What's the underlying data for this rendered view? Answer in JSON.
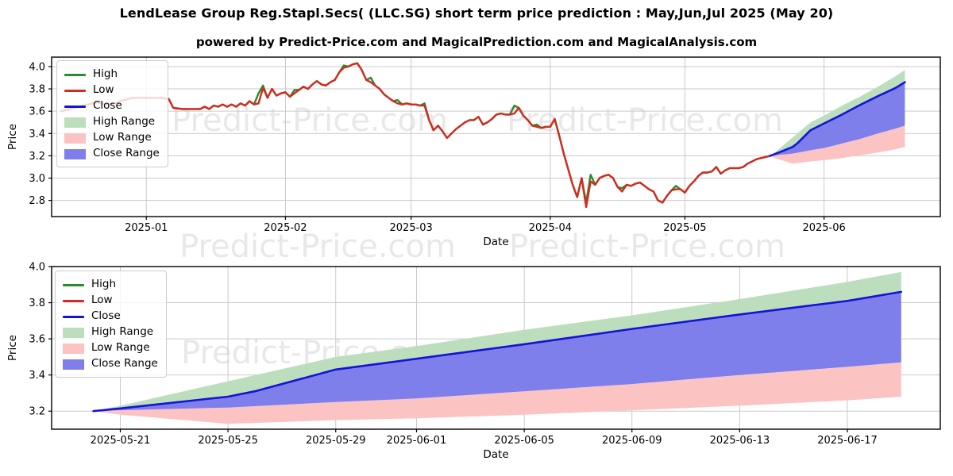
{
  "page": {
    "title": "LendLease Group Reg.Stapl.Secs( (LLC.SG) short term price prediction : May,Jun,Jul 2025 (May 20)",
    "subtitle": "powered by Predict-Price.com and MagicalPrediction.com and MagicalAnalysis.com",
    "watermark_text": "Predict-Price.com",
    "background": "#ffffff"
  },
  "colors": {
    "high_line": "#2a8c2a",
    "low_line": "#d22b22",
    "close_line": "#1414d6",
    "high_range": "#bcdebc",
    "low_range": "#fcc3c3",
    "close_range": "#7f7fec",
    "grid": "#c9c9c9",
    "axis": "#000000",
    "text": "#000000",
    "watermark": "rgba(0,0,0,0.09)"
  },
  "legend": {
    "items": [
      {
        "label": "High",
        "kind": "line",
        "color": "high_line"
      },
      {
        "label": "Low",
        "kind": "line",
        "color": "low_line"
      },
      {
        "label": "Close",
        "kind": "line",
        "color": "close_line"
      },
      {
        "label": "High Range",
        "kind": "patch",
        "color": "high_range"
      },
      {
        "label": "Low Range",
        "kind": "patch",
        "color": "low_range"
      },
      {
        "label": "Close Range",
        "kind": "patch",
        "color": "close_range"
      }
    ]
  },
  "chart_data": [
    {
      "type": "line",
      "role": "history_with_forecast",
      "xlabel": "Date",
      "ylabel": "Price",
      "grid": true,
      "legend_position": "upper left",
      "yticks": [
        2.8,
        3.0,
        3.2,
        3.4,
        3.6,
        3.8,
        4.0
      ],
      "ylim": [
        2.655,
        4.085
      ],
      "xlim_days": [
        -21.1,
        176.9
      ],
      "xticks": [
        {
          "label": "2025-01",
          "day": 0
        },
        {
          "label": "2025-02",
          "day": 31
        },
        {
          "label": "2025-03",
          "day": 59
        },
        {
          "label": "2025-04",
          "day": 90
        },
        {
          "label": "2025-05",
          "day": 120
        },
        {
          "label": "2025-06",
          "day": 151
        }
      ],
      "history_points_day_low_high": [
        [
          -19,
          3.6
        ],
        [
          -17,
          3.62
        ],
        [
          -15,
          3.64
        ],
        [
          -13,
          3.66
        ],
        [
          -11,
          3.68
        ],
        [
          -9,
          3.66
        ],
        [
          -7,
          3.67
        ],
        [
          -5,
          3.7
        ],
        [
          -3,
          3.72
        ],
        [
          -1,
          3.72
        ],
        [
          1,
          3.72
        ],
        [
          3,
          3.72
        ],
        [
          5,
          3.71
        ],
        [
          6,
          3.63
        ],
        [
          8,
          3.62
        ],
        [
          10,
          3.62
        ],
        [
          12,
          3.62
        ],
        [
          13,
          3.64
        ],
        [
          14,
          3.62
        ],
        [
          15,
          3.65
        ],
        [
          16,
          3.64
        ],
        [
          17,
          3.66
        ],
        [
          18,
          3.64
        ],
        [
          19,
          3.66
        ],
        [
          20,
          3.64
        ],
        [
          21,
          3.67
        ],
        [
          22,
          3.65
        ],
        [
          23,
          3.69
        ],
        [
          24,
          3.66
        ],
        [
          25,
          3.67,
          3.76
        ],
        [
          26,
          3.81,
          3.83
        ],
        [
          27,
          3.72
        ],
        [
          28,
          3.8
        ],
        [
          29,
          3.74
        ],
        [
          30,
          3.76
        ],
        [
          31,
          3.77
        ],
        [
          32,
          3.73
        ],
        [
          33,
          3.76,
          3.79
        ],
        [
          34,
          3.79
        ],
        [
          35,
          3.82
        ],
        [
          36,
          3.8
        ],
        [
          37,
          3.84
        ],
        [
          38,
          3.87
        ],
        [
          39,
          3.84
        ],
        [
          40,
          3.83
        ],
        [
          41,
          3.86
        ],
        [
          42,
          3.88
        ],
        [
          43,
          3.95
        ],
        [
          44,
          3.99,
          4.01
        ],
        [
          45,
          4.0
        ],
        [
          46,
          4.02
        ],
        [
          47,
          4.03
        ],
        [
          48,
          3.97
        ],
        [
          49,
          3.88
        ],
        [
          50,
          3.86,
          3.9
        ],
        [
          51,
          3.83
        ],
        [
          52,
          3.8
        ],
        [
          53,
          3.75
        ],
        [
          54,
          3.72
        ],
        [
          55,
          3.69
        ],
        [
          56,
          3.67,
          3.7
        ],
        [
          57,
          3.66
        ],
        [
          58,
          3.67
        ],
        [
          59,
          3.66
        ],
        [
          60,
          3.66
        ],
        [
          61,
          3.65
        ],
        [
          62,
          3.65,
          3.67
        ],
        [
          63,
          3.52
        ],
        [
          64,
          3.43
        ],
        [
          65,
          3.47
        ],
        [
          66,
          3.42
        ],
        [
          67,
          3.36
        ],
        [
          68,
          3.4
        ],
        [
          69,
          3.44
        ],
        [
          70,
          3.47
        ],
        [
          71,
          3.5
        ],
        [
          72,
          3.52
        ],
        [
          73,
          3.52
        ],
        [
          74,
          3.55
        ],
        [
          75,
          3.48
        ],
        [
          76,
          3.5
        ],
        [
          77,
          3.53
        ],
        [
          78,
          3.57
        ],
        [
          79,
          3.58
        ],
        [
          80,
          3.57
        ],
        [
          81,
          3.57
        ],
        [
          82,
          3.58,
          3.65
        ],
        [
          83,
          3.63
        ],
        [
          84,
          3.56
        ],
        [
          85,
          3.52
        ],
        [
          86,
          3.47
        ],
        [
          87,
          3.46,
          3.48
        ],
        [
          88,
          3.45
        ],
        [
          89,
          3.46
        ],
        [
          90,
          3.46
        ],
        [
          91,
          3.53
        ],
        [
          92,
          3.38
        ],
        [
          93,
          3.22
        ],
        [
          94,
          3.08
        ],
        [
          95,
          2.94
        ],
        [
          96,
          2.83
        ],
        [
          97,
          3.0
        ],
        [
          98,
          2.74,
          2.78
        ],
        [
          99,
          2.97,
          3.03
        ],
        [
          100,
          2.94
        ],
        [
          101,
          3.0
        ],
        [
          102,
          3.02
        ],
        [
          103,
          3.03
        ],
        [
          104,
          3.0
        ],
        [
          105,
          2.92
        ],
        [
          106,
          2.88,
          2.91
        ],
        [
          107,
          2.94
        ],
        [
          108,
          2.93
        ],
        [
          109,
          2.95
        ],
        [
          110,
          2.96
        ],
        [
          111,
          2.93
        ],
        [
          112,
          2.9
        ],
        [
          113,
          2.88
        ],
        [
          114,
          2.8
        ],
        [
          115,
          2.78
        ],
        [
          116,
          2.84
        ],
        [
          117,
          2.89
        ],
        [
          118,
          2.9,
          2.93
        ],
        [
          119,
          2.9
        ],
        [
          120,
          2.87
        ],
        [
          121,
          2.93
        ],
        [
          122,
          2.97
        ],
        [
          123,
          3.02
        ],
        [
          124,
          3.05
        ],
        [
          125,
          3.05
        ],
        [
          126,
          3.06
        ],
        [
          127,
          3.1
        ],
        [
          128,
          3.04
        ],
        [
          129,
          3.07
        ],
        [
          130,
          3.09
        ],
        [
          131,
          3.09
        ],
        [
          132,
          3.09
        ],
        [
          133,
          3.1
        ],
        [
          134,
          3.13
        ],
        [
          135,
          3.15
        ],
        [
          136,
          3.17
        ],
        [
          137,
          3.18
        ],
        [
          138,
          3.19
        ],
        [
          139,
          3.2
        ]
      ],
      "forecast_start_day": 139
    },
    {
      "type": "line",
      "role": "forecast_detail",
      "xlabel": "Date",
      "ylabel": "Price",
      "grid": true,
      "legend_position": "upper left",
      "yticks": [
        3.2,
        3.4,
        3.6,
        3.8,
        4.0
      ],
      "ylim": [
        3.1,
        4.0
      ],
      "xlim_days": [
        -1.55,
        31.45
      ],
      "xticks": [
        {
          "label": "2025-05-21",
          "day": 1
        },
        {
          "label": "2025-05-25",
          "day": 5
        },
        {
          "label": "2025-05-29",
          "day": 9
        },
        {
          "label": "2025-06-01",
          "day": 12
        },
        {
          "label": "2025-06-05",
          "day": 16
        },
        {
          "label": "2025-06-09",
          "day": 20
        },
        {
          "label": "2025-06-13",
          "day": 24
        },
        {
          "label": "2025-06-17",
          "day": 28
        }
      ],
      "series": {
        "close": [
          [
            0,
            3.2
          ],
          [
            1,
            3.215
          ],
          [
            5,
            3.28
          ],
          [
            6,
            3.31
          ],
          [
            9,
            3.43
          ],
          [
            12,
            3.49
          ],
          [
            16,
            3.57
          ],
          [
            20,
            3.655
          ],
          [
            24,
            3.735
          ],
          [
            28,
            3.81
          ],
          [
            30,
            3.86
          ]
        ],
        "high_range_top": [
          [
            0,
            3.2
          ],
          [
            1,
            3.23
          ],
          [
            5,
            3.365
          ],
          [
            9,
            3.5
          ],
          [
            12,
            3.56
          ],
          [
            16,
            3.65
          ],
          [
            20,
            3.73
          ],
          [
            24,
            3.82
          ],
          [
            28,
            3.915
          ],
          [
            30,
            3.97
          ]
        ],
        "close_range_bottom": [
          [
            0,
            3.2
          ],
          [
            1,
            3.205
          ],
          [
            5,
            3.22
          ],
          [
            9,
            3.25
          ],
          [
            12,
            3.27
          ],
          [
            16,
            3.31
          ],
          [
            20,
            3.35
          ],
          [
            24,
            3.4
          ],
          [
            28,
            3.445
          ],
          [
            30,
            3.47
          ]
        ],
        "low_range_bottom": [
          [
            0,
            3.2
          ],
          [
            1,
            3.18
          ],
          [
            5,
            3.13
          ],
          [
            9,
            3.15
          ],
          [
            12,
            3.16
          ],
          [
            16,
            3.18
          ],
          [
            20,
            3.205
          ],
          [
            24,
            3.23
          ],
          [
            28,
            3.26
          ],
          [
            30,
            3.28
          ]
        ]
      }
    }
  ]
}
